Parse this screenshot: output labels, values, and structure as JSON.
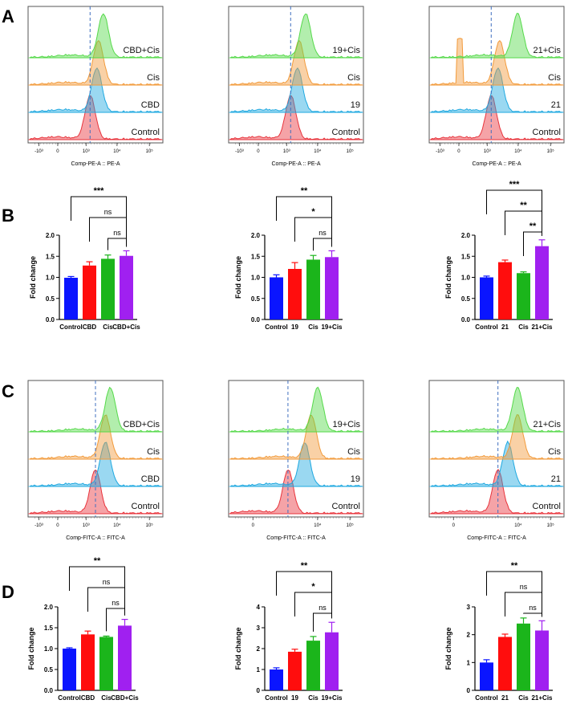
{
  "panel_labels": [
    "A",
    "B",
    "C",
    "D"
  ],
  "colors": {
    "control": "#e8333b",
    "compound": "#1ea8e0",
    "cis": "#f29a3a",
    "combo": "#55d94a",
    "bar_control": "#0a15ff",
    "bar_compound": "#ff0d0d",
    "bar_cis": "#1bb51b",
    "bar_combo": "#a020f0",
    "dash": "#3f6fbf"
  },
  "chart_data": [
    {
      "id": "A1",
      "type": "histogram-overlay",
      "panel": "A",
      "xlabel": "Comp-PE-A :: PE-A",
      "x_ticks": [
        "-10³",
        "0",
        "10³",
        "10⁴",
        "10⁵"
      ],
      "tracks": [
        "CBD+Cis",
        "Cis",
        "CBD",
        "Control"
      ],
      "peaks_relative_to_control": [
        0.4,
        0.25,
        0.2,
        0.0
      ],
      "dashed_marker_relative": 0.0
    },
    {
      "id": "A2",
      "type": "histogram-overlay",
      "panel": "A",
      "xlabel": "Comp-PE-A :: PE-A",
      "x_ticks": [
        "-10³",
        "0",
        "10³",
        "10⁴",
        "10⁵"
      ],
      "tracks": [
        "19+Cis",
        "Cis",
        "19",
        "Control"
      ],
      "peaks_relative_to_control": [
        0.45,
        0.25,
        0.2,
        0.0
      ],
      "dashed_marker_relative": 0.0
    },
    {
      "id": "A3",
      "type": "histogram-overlay",
      "panel": "A",
      "xlabel": "Comp-PE-A :: PE-A",
      "x_ticks": [
        "-10³",
        "0",
        "10³",
        "10⁴",
        "10⁵"
      ],
      "tracks": [
        "21+Cis",
        "Cis",
        "21",
        "Control"
      ],
      "peaks_relative_to_control": [
        0.8,
        0.25,
        0.2,
        0.0
      ],
      "dashed_marker_relative": 0.0
    },
    {
      "id": "B1",
      "type": "bar",
      "panel": "B",
      "categories": [
        "Control",
        "CBD",
        "Cis",
        "CBD+Cis"
      ],
      "values": [
        0.99,
        1.28,
        1.44,
        1.51
      ],
      "errors": [
        0.03,
        0.09,
        0.09,
        0.12
      ],
      "ylabel": "Fold change",
      "ylim": [
        0,
        2.0
      ],
      "yticks": [
        0.0,
        0.5,
        1.0,
        1.5,
        2.0
      ],
      "ytick_labels": [
        "0.0",
        "0.5",
        "1.0",
        "1.5",
        "2.0"
      ],
      "significance": [
        {
          "from": 0,
          "to": 3,
          "label": "***"
        },
        {
          "from": 1,
          "to": 3,
          "label": "ns"
        },
        {
          "from": 2,
          "to": 3,
          "label": "ns"
        }
      ]
    },
    {
      "id": "B2",
      "type": "bar",
      "panel": "B",
      "categories": [
        "Control",
        "19",
        "Cis",
        "19+Cis"
      ],
      "values": [
        1.0,
        1.2,
        1.42,
        1.48
      ],
      "errors": [
        0.06,
        0.15,
        0.1,
        0.15
      ],
      "ylabel": "Fold change",
      "ylim": [
        0,
        2.0
      ],
      "yticks": [
        0.0,
        0.5,
        1.0,
        1.5,
        2.0
      ],
      "ytick_labels": [
        "0.0",
        "0.5",
        "1.0",
        "1.5",
        "2.0"
      ],
      "significance": [
        {
          "from": 0,
          "to": 3,
          "label": "**"
        },
        {
          "from": 1,
          "to": 3,
          "label": "*"
        },
        {
          "from": 2,
          "to": 3,
          "label": "ns"
        }
      ]
    },
    {
      "id": "B3",
      "type": "bar",
      "panel": "B",
      "categories": [
        "Control",
        "21",
        "Cis",
        "21+Cis"
      ],
      "values": [
        1.0,
        1.36,
        1.1,
        1.74
      ],
      "errors": [
        0.03,
        0.05,
        0.03,
        0.15
      ],
      "ylabel": "Fold change",
      "ylim": [
        0,
        2.0
      ],
      "yticks": [
        0.0,
        0.5,
        1.0,
        1.5,
        2.0
      ],
      "ytick_labels": [
        "0.0",
        "0.5",
        "1.0",
        "1.5",
        "2.0"
      ],
      "significance": [
        {
          "from": 0,
          "to": 3,
          "label": "***"
        },
        {
          "from": 1,
          "to": 3,
          "label": "**"
        },
        {
          "from": 2,
          "to": 3,
          "label": "**"
        }
      ]
    },
    {
      "id": "C1",
      "type": "histogram-overlay",
      "panel": "C",
      "xlabel": "Comp-FITC-A :: FITC-A",
      "x_ticks": [
        "-10³",
        "0",
        "10³",
        "10⁴",
        "10⁵"
      ],
      "tracks": [
        "CBD+Cis",
        "Cis",
        "CBD",
        "Control"
      ],
      "peaks_relative_to_control": [
        0.45,
        0.3,
        0.3,
        0.0
      ],
      "dashed_marker_relative": 0.0
    },
    {
      "id": "C2",
      "type": "histogram-overlay",
      "panel": "C",
      "xlabel": "Comp-FITC-A :: FITC-A",
      "x_ticks": [
        "0",
        "10⁴",
        "10⁵"
      ],
      "tracks": [
        "19+Cis",
        "Cis",
        "19",
        "Control"
      ],
      "peaks_relative_to_control": [
        0.9,
        0.7,
        0.5,
        0.0
      ],
      "dashed_marker_relative": 0.0
    },
    {
      "id": "C3",
      "type": "histogram-overlay",
      "panel": "C",
      "xlabel": "Comp-FITC-A :: FITC-A",
      "x_ticks": [
        "0",
        "10⁴",
        "10⁵"
      ],
      "tracks": [
        "21+Cis",
        "Cis",
        "21",
        "Control"
      ],
      "peaks_relative_to_control": [
        0.6,
        0.6,
        0.3,
        0.0
      ],
      "dashed_marker_relative": 0.0
    },
    {
      "id": "D1",
      "type": "bar",
      "panel": "D",
      "categories": [
        "Control",
        "CBD",
        "Cis",
        "CBD+Cis"
      ],
      "values": [
        1.0,
        1.34,
        1.28,
        1.55
      ],
      "errors": [
        0.02,
        0.08,
        0.02,
        0.15
      ],
      "ylabel": "Fold change",
      "ylim": [
        0,
        2.0
      ],
      "yticks": [
        0.0,
        0.5,
        1.0,
        1.5,
        2.0
      ],
      "ytick_labels": [
        "0.0",
        "0.5",
        "1.0",
        "1.5",
        "2.0"
      ],
      "significance": [
        {
          "from": 0,
          "to": 3,
          "label": "**"
        },
        {
          "from": 1,
          "to": 3,
          "label": "ns"
        },
        {
          "from": 2,
          "to": 3,
          "label": "ns"
        }
      ]
    },
    {
      "id": "D2",
      "type": "bar",
      "panel": "D",
      "categories": [
        "Control",
        "19",
        "Cis",
        "19+Cis"
      ],
      "values": [
        1.0,
        1.85,
        2.38,
        2.78
      ],
      "errors": [
        0.08,
        0.12,
        0.2,
        0.48
      ],
      "ylabel": "Fold change",
      "ylim": [
        0,
        4
      ],
      "yticks": [
        0,
        1,
        2,
        3,
        4
      ],
      "ytick_labels": [
        "0",
        "1",
        "2",
        "3",
        "4"
      ],
      "significance": [
        {
          "from": 0,
          "to": 3,
          "label": "**"
        },
        {
          "from": 1,
          "to": 3,
          "label": "*"
        },
        {
          "from": 2,
          "to": 3,
          "label": "ns"
        }
      ]
    },
    {
      "id": "D3",
      "type": "bar",
      "panel": "D",
      "categories": [
        "Control",
        "21",
        "Cis",
        "21+Cis"
      ],
      "values": [
        1.0,
        1.92,
        2.4,
        2.15
      ],
      "errors": [
        0.1,
        0.1,
        0.2,
        0.35
      ],
      "ylabel": "Fold change",
      "ylim": [
        0,
        3
      ],
      "yticks": [
        0,
        1,
        2,
        3
      ],
      "ytick_labels": [
        "0",
        "1",
        "2",
        "3"
      ],
      "significance": [
        {
          "from": 0,
          "to": 3,
          "label": "**"
        },
        {
          "from": 1,
          "to": 3,
          "label": "ns"
        },
        {
          "from": 2,
          "to": 3,
          "label": "ns"
        }
      ]
    }
  ]
}
